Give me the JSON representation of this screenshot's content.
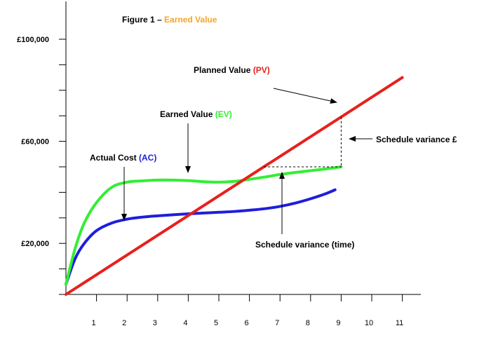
{
  "chart_data": {
    "type": "line",
    "title_prefix": "Figure 1 – ",
    "title_highlight": "Earned Value",
    "title_highlight_color": "#f5a623",
    "x_ticks": [
      "1",
      "2",
      "3",
      "4",
      "5",
      "6",
      "7",
      "8",
      "9",
      "10",
      "11"
    ],
    "y_tick_labels": [
      {
        "value": 100000,
        "label": "£100,000"
      },
      {
        "value": 60000,
        "label": "£60,000"
      },
      {
        "value": 20000,
        "label": "£20,000"
      }
    ],
    "y_ticks": [
      10000,
      20000,
      30000,
      40000,
      50000,
      60000,
      70000,
      80000,
      90000,
      100000
    ],
    "xlim": [
      0,
      11.6
    ],
    "ylim": [
      -2000,
      114000
    ],
    "series": [
      {
        "key": "pv",
        "name_text": "Planned Value ",
        "name_abbrev": "(PV)",
        "color": "#e8201c",
        "x": [
          0,
          11
        ],
        "y": [
          0,
          85000
        ]
      },
      {
        "key": "ev",
        "name_text": "Earned Value ",
        "name_abbrev": "(EV)",
        "color": "#33ee33",
        "x": [
          0,
          0.3,
          0.6,
          1,
          1.5,
          2,
          2.5,
          3,
          3.5,
          4,
          4.5,
          5,
          5.5,
          6,
          6.5,
          7,
          7.5,
          8,
          8.5,
          9
        ],
        "y": [
          4000,
          18000,
          28000,
          36000,
          42000,
          44000,
          44500,
          44800,
          44800,
          44600,
          44200,
          44000,
          44300,
          45100,
          46000,
          47000,
          47800,
          48500,
          49200,
          50000
        ]
      },
      {
        "key": "ac",
        "name_text": "Actual Cost ",
        "name_abbrev": "(AC)",
        "color": "#1e1edc",
        "x": [
          0,
          0.3,
          0.6,
          1,
          1.5,
          2,
          2.5,
          3,
          3.5,
          4,
          4.5,
          5,
          5.5,
          6,
          6.5,
          7,
          7.5,
          8,
          8.5,
          8.8
        ],
        "y": [
          4000,
          14000,
          20000,
          25000,
          28000,
          29500,
          30300,
          30800,
          31200,
          31600,
          31900,
          32200,
          32500,
          33000,
          33600,
          34500,
          35800,
          37500,
          39500,
          41000
        ]
      }
    ],
    "annotations": {
      "schedule_variance_cost": "Schedule variance £",
      "schedule_variance_time": "Schedule variance (time)"
    }
  }
}
